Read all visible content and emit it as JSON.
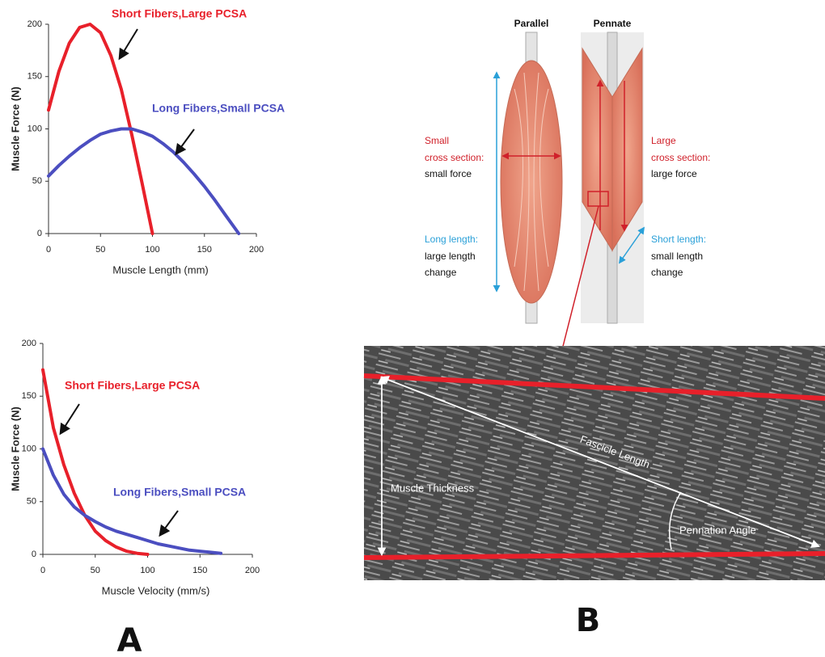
{
  "chart_data": [
    {
      "type": "line",
      "xlabel": "Muscle Length (mm)",
      "ylabel": "Muscle Force (N)",
      "x": [
        0,
        10,
        20,
        30,
        40,
        50,
        60,
        70,
        80,
        90,
        100,
        110,
        120,
        130,
        140,
        150,
        160,
        170,
        183
      ],
      "series": [
        {
          "name": "Short Fibers,Large PCSA",
          "color": "#e8202a",
          "values": [
            118,
            155,
            182,
            197,
            200,
            192,
            170,
            138,
            95,
            48,
            0,
            null,
            null,
            null,
            null,
            null,
            null,
            null,
            null
          ]
        },
        {
          "name": "Long Fibers,Small PCSA",
          "color": "#4b4ec0",
          "values": [
            55,
            65,
            74,
            82,
            89,
            95,
            98,
            100,
            100,
            97,
            93,
            86,
            78,
            68,
            57,
            45,
            32,
            18,
            0
          ]
        }
      ],
      "xlim": [
        0,
        200
      ],
      "xticks": [
        0,
        50,
        100,
        150,
        200
      ],
      "ylim": [
        0,
        200
      ],
      "yticks": [
        0,
        50,
        100,
        150,
        200
      ]
    },
    {
      "type": "line",
      "xlabel": "Muscle Velocity (mm/s)",
      "ylabel": "Muscle Force (N)",
      "x": [
        0,
        10,
        20,
        30,
        40,
        50,
        60,
        70,
        80,
        90,
        100,
        110,
        120,
        130,
        140,
        150,
        160,
        170
      ],
      "series": [
        {
          "name": "Short Fibers,Large PCSA",
          "color": "#e8202a",
          "values": [
            175,
            120,
            85,
            58,
            37,
            22,
            13,
            7,
            3,
            1,
            0,
            null,
            null,
            null,
            null,
            null,
            null,
            null
          ]
        },
        {
          "name": "Long Fibers,Small PCSA",
          "color": "#4b4ec0",
          "values": [
            100,
            75,
            57,
            45,
            37,
            31,
            26,
            22,
            19,
            16,
            13,
            10,
            8,
            6,
            4,
            3,
            2,
            1
          ]
        }
      ],
      "xlim": [
        0,
        200
      ],
      "xticks": [
        0,
        50,
        100,
        150,
        200
      ],
      "ylim": [
        0,
        200
      ],
      "yticks": [
        0,
        50,
        100,
        150,
        200
      ]
    }
  ],
  "diagram": {
    "muscle_types": [
      "Parallel",
      "Pennate"
    ],
    "parallel_notes": {
      "cross_section": [
        "Small",
        "cross section:",
        "small force"
      ],
      "length": [
        "Long length:",
        "large length",
        "change"
      ]
    },
    "pennate_notes": {
      "cross_section": [
        "Large",
        "cross section:",
        "large force"
      ],
      "length": [
        "Short length:",
        "small length",
        "change"
      ]
    }
  },
  "ultrasound": {
    "labels": [
      "Fascicle Length",
      "Muscle Thickness",
      "Pennation Angle"
    ]
  },
  "panel_labels": [
    "A",
    "B"
  ]
}
